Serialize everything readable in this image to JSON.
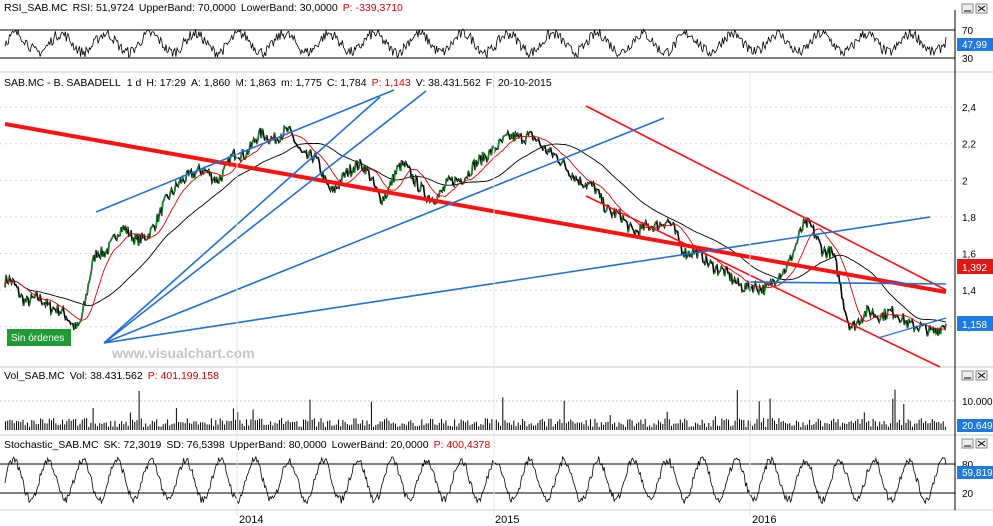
{
  "rsi_header": {
    "name": "RSI_SAB.MC",
    "rsi": "RSI: 51,9724",
    "upper": "UpperBand: 70,0000",
    "lower": "LowerBand: 30,0000",
    "p": "P: -339,3710"
  },
  "price_header": {
    "symbol": "SAB.MC - B. SABADELL",
    "period": "1 d",
    "h": "H: 17:29",
    "a": "A: 1,860",
    "m": "M: 1,863",
    "min": "m: 1,775",
    "c": "C: 1,784",
    "p": "P: 1,143",
    "v": "V: 38.431.562",
    "f": "F: 20-10-2015"
  },
  "vol_header": {
    "name": "Vol_SAB.MC",
    "vol": "Vol: 38.431.562",
    "p": "P: 401.199.158"
  },
  "stoch_header": {
    "name": "Stochastic_SAB.MC",
    "sk": "SK: 72,3019",
    "sd": "SD: 76,5398",
    "upper": "UpperBand: 80,0000",
    "lower": "LowerBand: 20,0000",
    "p": "P: 400,4378"
  },
  "badges": {
    "no_orders": "Sin órdenes",
    "watermark": "www.visualchart.com"
  },
  "colors": {
    "price_line": "#000000",
    "ma_short": "#e00000",
    "ma_long": "#000000",
    "trend_red": "#ff0000",
    "trend_blue": "#1f6fd6",
    "badge_bg": "#1f9a35",
    "axis_box_red": "#e01818",
    "axis_box_blue": "#1c7ae0"
  },
  "chart_data": [
    {
      "type": "line",
      "title": "SAB.MC - B. SABADELL",
      "x": [
        "2013-06",
        "2013-07",
        "2013-08",
        "2013-09",
        "2013-10",
        "2013-11",
        "2013-12",
        "2014-01",
        "2014-02",
        "2014-03",
        "2014-04",
        "2014-05",
        "2014-06",
        "2014-07",
        "2014-08",
        "2014-09",
        "2014-10",
        "2014-11",
        "2014-12",
        "2015-01",
        "2015-02",
        "2015-03",
        "2015-04",
        "2015-05",
        "2015-06",
        "2015-07",
        "2015-08",
        "2015-09",
        "2015-10",
        "2015-11",
        "2015-12",
        "2016-01",
        "2016-02",
        "2016-03",
        "2016-04",
        "2016-05",
        "2016-06",
        "2016-07",
        "2016-08",
        "2016-09",
        "2016-10"
      ],
      "series": [
        {
          "values": [
            1.45,
            1.35,
            1.32,
            1.2,
            1.6,
            1.72,
            1.68,
            1.92,
            2.05,
            2.02,
            2.15,
            2.24,
            2.25,
            2.12,
            1.95,
            2.1,
            1.92,
            2.08,
            1.9,
            1.98,
            2.08,
            2.2,
            2.25,
            2.18,
            2.05,
            1.95,
            1.8,
            1.72,
            1.78,
            1.62,
            1.55,
            1.45,
            1.4,
            1.48,
            1.75,
            1.62,
            1.22,
            1.28,
            1.26,
            1.18,
            1.2
          ]
        }
      ],
      "y_ticks": [
        "2,4",
        "2,2",
        "2",
        "1,8",
        "1,6",
        "1,4",
        "1,2"
      ],
      "ylim": [
        1.1,
        2.45
      ],
      "x_ticks": [
        "2014",
        "2015",
        "2016"
      ],
      "axis_boxes": [
        "1,392",
        "1,158"
      ]
    },
    {
      "type": "line",
      "title": "RSI_SAB.MC",
      "y_ticks": [
        "70",
        "30"
      ],
      "ylim": [
        20,
        80
      ],
      "bands": [
        70,
        30
      ],
      "last_value": "47,99"
    },
    {
      "type": "bar",
      "title": "Vol_SAB.MC",
      "y_ticks": [
        "10.000"
      ],
      "last_value": "20.649"
    },
    {
      "type": "line",
      "title": "Stochastic_SAB.MC",
      "y_ticks": [
        "80",
        "20"
      ],
      "ylim": [
        0,
        100
      ],
      "bands": [
        80,
        20
      ],
      "last_value": "59,819"
    }
  ]
}
